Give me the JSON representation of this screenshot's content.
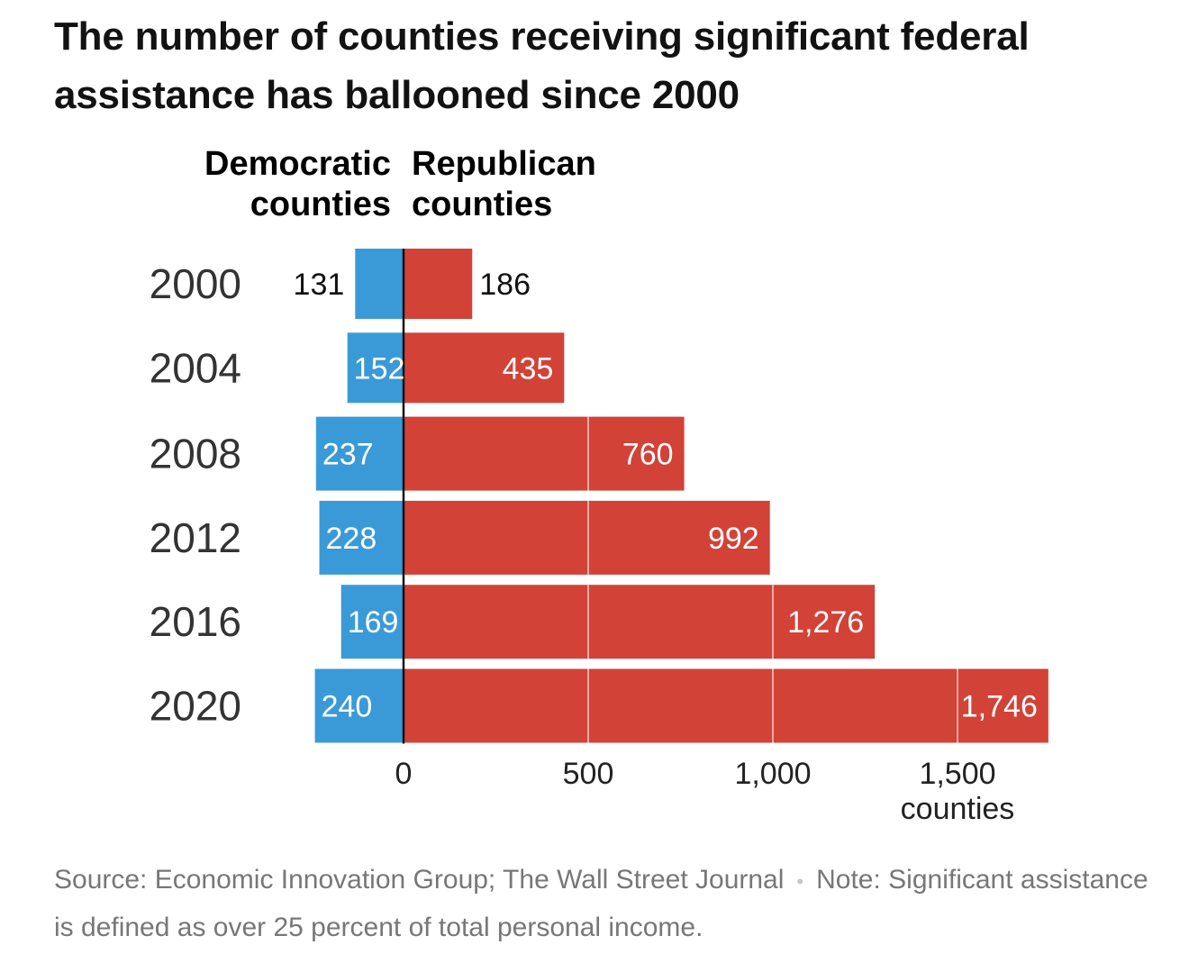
{
  "title": "The number of counties receiving significant federal assistance has ballooned since 2000",
  "colors": {
    "democratic": "#3a9ad8",
    "republican": "#d24237",
    "axis": "#111111"
  },
  "legend": {
    "democratic": [
      "Democratic",
      "counties"
    ],
    "republican": [
      "Republican",
      "counties"
    ]
  },
  "source": {
    "text": "Source: Economic Innovation Group; The Wall Street Journal",
    "separator": "•",
    "note": "Note: Significant assistance is defined as over 25 percent of total personal income."
  },
  "chart_data": {
    "type": "bar",
    "orientation": "horizontal-diverging",
    "categories": [
      "2000",
      "2004",
      "2008",
      "2012",
      "2016",
      "2020"
    ],
    "series": [
      {
        "name": "Democratic counties",
        "values": [
          131,
          152,
          237,
          228,
          169,
          240
        ],
        "labels": [
          "131",
          "152",
          "237",
          "228",
          "169",
          "240"
        ]
      },
      {
        "name": "Republican counties",
        "values": [
          186,
          435,
          760,
          992,
          1276,
          1746
        ],
        "labels": [
          "186",
          "435",
          "760",
          "992",
          "1,276",
          "1,746"
        ]
      }
    ],
    "x_ticks": [
      {
        "value": 0,
        "label": "0"
      },
      {
        "value": 500,
        "label": "500"
      },
      {
        "value": 1000,
        "label": "1,000"
      },
      {
        "value": 1500,
        "label": "1,500"
      }
    ],
    "x_unit": "counties",
    "xlim": [
      -240,
      1746
    ],
    "grid": "white vertical lines at 500, 1,000, 1,500 inside bars"
  }
}
